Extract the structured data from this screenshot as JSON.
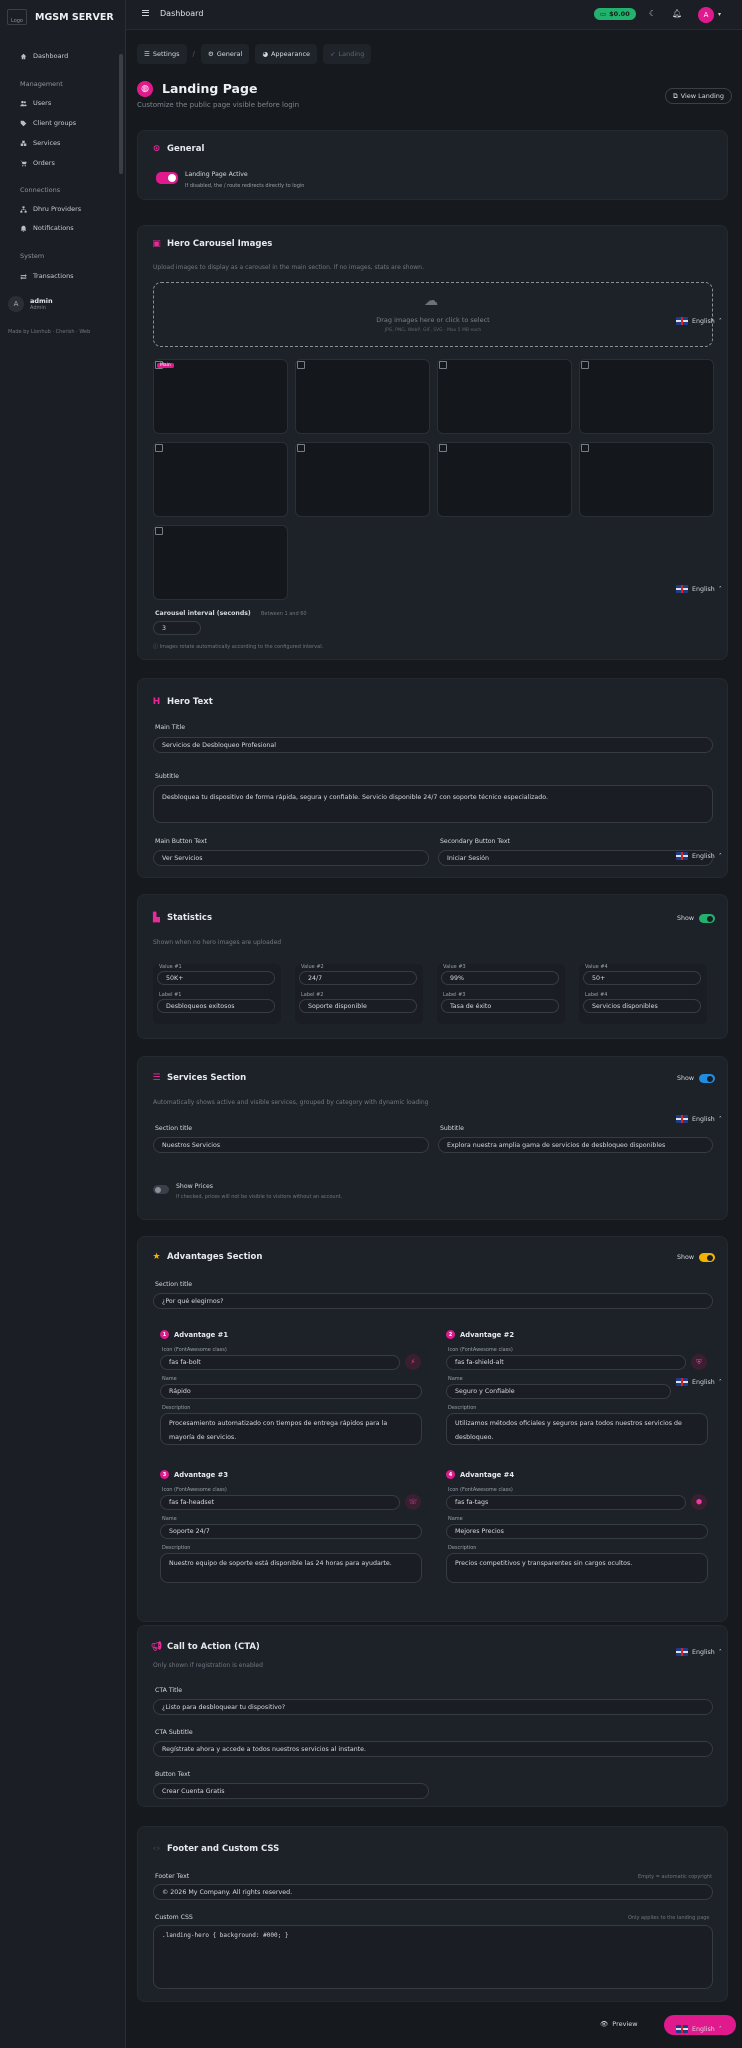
{
  "app": {
    "name": "MGSM SERVER",
    "logo_alt": "Logo"
  },
  "sidebar": {
    "items": [
      {
        "label": "Dashboard",
        "icon": "home-icon"
      },
      {
        "section": "Management"
      },
      {
        "label": "Users",
        "icon": "users-icon"
      },
      {
        "label": "Client groups",
        "icon": "tags-icon"
      },
      {
        "label": "Services",
        "icon": "cubes-icon"
      },
      {
        "label": "Orders",
        "icon": "cart-icon"
      },
      {
        "section": "Connections"
      },
      {
        "label": "Dhru Providers",
        "icon": "sitemap-icon"
      },
      {
        "label": "Notifications",
        "icon": "bell-icon"
      },
      {
        "section": "System"
      },
      {
        "label": "Transactions",
        "icon": "exchange-icon"
      }
    ],
    "user": {
      "initial": "A",
      "name": "admin",
      "role": "Admin"
    },
    "made_by": "Made by Lionhub · Cherish · Web"
  },
  "topbar": {
    "title": "Dashboard",
    "credit": "$0.00",
    "avatar_initial": "A"
  },
  "breadcrumb": {
    "tabs": [
      "Settings",
      "General",
      "Appearance",
      "Landing"
    ]
  },
  "page": {
    "title": "Landing Page",
    "subtitle": "Customize the public page visible before login",
    "view_button": "View Landing"
  },
  "language": "English",
  "general": {
    "title": "General",
    "toggle_label": "Landing Page Active",
    "toggle_help": "If disabled, the / route redirects directly to login",
    "toggle_on": true
  },
  "carousel": {
    "title": "Hero Carousel Images",
    "help": "Upload images to display as a carousel in the main section. If no images, stats are shown.",
    "drop_text": "Drag images here or click to select",
    "drop_formats": "JPG, PNG, WebP, GIF, SVG · Max 5 MB each",
    "main_badge": "Main",
    "image_count": 9,
    "interval_label": "Carousel interval (seconds)",
    "interval_range": "Between 1 and 60",
    "interval_value": "3",
    "interval_help": "Images rotate automatically according to the configured interval."
  },
  "hero_text": {
    "title": "Hero Text",
    "main_title_label": "Main Title",
    "main_title": "Servicios de Desbloqueo Profesional",
    "subtitle_label": "Subtitle",
    "subtitle": "Desbloquea tu dispositivo de forma rápida, segura y confiable. Servicio disponible 24/7 con soporte técnico especializado.",
    "main_button_label": "Main Button Text",
    "main_button": "Ver Servicios",
    "secondary_button_label": "Secondary Button Text",
    "secondary_button": "Iniciar Sesión"
  },
  "statistics": {
    "title": "Statistics",
    "help": "Shown when no hero images are uploaded",
    "show_label": "Show",
    "show_on": true,
    "items": [
      {
        "value_label": "Value #1",
        "value": "50K+",
        "label_label": "Label #1",
        "label": "Desbloqueos exitosos"
      },
      {
        "value_label": "Value #2",
        "value": "24/7",
        "label_label": "Label #2",
        "label": "Soporte disponible"
      },
      {
        "value_label": "Value #3",
        "value": "99%",
        "label_label": "Label #3",
        "label": "Tasa de éxito"
      },
      {
        "value_label": "Value #4",
        "value": "50+",
        "label_label": "Label #4",
        "label": "Servicios disponibles"
      }
    ]
  },
  "services": {
    "title": "Services Section",
    "help": "Automatically shows active and visible services, grouped by category with dynamic loading",
    "show_label": "Show",
    "show_on": true,
    "section_title_label": "Section title",
    "section_title": "Nuestros Servicios",
    "subtitle_label": "Subtitle",
    "subtitle": "Explora nuestra amplia gama de servicios de desbloqueo disponibles",
    "prices_label": "Show Prices",
    "prices_help": "If checked, prices will not be visible to visitors without an account.",
    "prices_on": false
  },
  "advantages": {
    "title": "Advantages Section",
    "show_label": "Show",
    "show_on": true,
    "section_title_label": "Section title",
    "section_title": "¿Por qué elegirnos?",
    "icon_label": "Icon (FontAwesome class)",
    "name_label": "Name",
    "desc_label": "Description",
    "items": [
      {
        "num": "1",
        "heading": "Advantage #1",
        "icon": "fas fa-bolt",
        "glyph": "⚡",
        "name": "Rápido",
        "desc": "Procesamiento automatizado con tiempos de entrega rápidos para la mayoría de servicios."
      },
      {
        "num": "2",
        "heading": "Advantage #2",
        "icon": "fas fa-shield-alt",
        "glyph": "⛨",
        "name": "Seguro y Confiable",
        "desc": "Utilizamos métodos oficiales y seguros para todos nuestros servicios de desbloqueo."
      },
      {
        "num": "3",
        "heading": "Advantage #3",
        "icon": "fas fa-headset",
        "glyph": "☏",
        "name": "Soporte 24/7",
        "desc": "Nuestro equipo de soporte está disponible las 24 horas para ayudarte."
      },
      {
        "num": "4",
        "heading": "Advantage #4",
        "icon": "fas fa-tags",
        "glyph": "⬢",
        "name": "Mejores Precios",
        "desc": "Precios competitivos y transparentes sin cargos ocultos."
      }
    ]
  },
  "cta": {
    "title": "Call to Action (CTA)",
    "help": "Only shown if registration is enabled",
    "cta_title_label": "CTA Title",
    "cta_title": "¿Listo para desbloquear tu dispositivo?",
    "cta_subtitle_label": "CTA Subtitle",
    "cta_subtitle": "Regístrate ahora y accede a todos nuestros servicios al instante.",
    "button_label": "Button Text",
    "button": "Crear Cuenta Gratis"
  },
  "footer": {
    "title": "Footer and Custom CSS",
    "footer_label": "Footer Text",
    "footer_hint": "Empty = automatic copyright",
    "footer_text": "© 2026 My Company. All rights reserved.",
    "css_label": "Custom CSS",
    "css_hint": "Only applies to the landing page",
    "css_text": ".landing-hero { background: #000; }"
  },
  "actions": {
    "preview": "Preview"
  },
  "colors": {
    "accent": "#e01a8d",
    "success": "#23b26d",
    "info": "#1f8de0",
    "warning": "#f0b400"
  }
}
